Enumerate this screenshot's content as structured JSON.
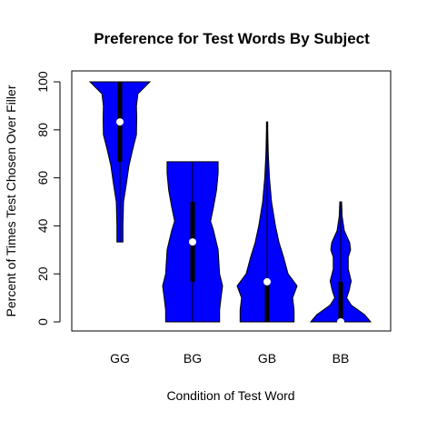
{
  "chart_data": {
    "type": "violin",
    "title": "Preference for Test Words By Subject",
    "xlabel": "Condition of Test Word",
    "ylabel": "Percent of Times Test Chosen Over Filler",
    "categories": [
      "GG",
      "BG",
      "GB",
      "BB"
    ],
    "ylim": [
      -4,
      104
    ],
    "yticks": [
      0,
      20,
      40,
      60,
      80,
      100
    ],
    "grid": false,
    "fill_color": "#0000ff",
    "violins": [
      {
        "category": "GG",
        "min": 33.3,
        "max": 100,
        "q1": 66.7,
        "median": 83.3,
        "q3": 100,
        "profile": [
          [
            33.3,
            0.1
          ],
          [
            40,
            0.1
          ],
          [
            50,
            0.12
          ],
          [
            58,
            0.22
          ],
          [
            65,
            0.3
          ],
          [
            72,
            0.43
          ],
          [
            78,
            0.55
          ],
          [
            85,
            0.56
          ],
          [
            90,
            0.55
          ],
          [
            95,
            0.6
          ],
          [
            100,
            1.0
          ]
        ]
      },
      {
        "category": "BG",
        "min": 0,
        "max": 66.7,
        "q1": 16.7,
        "median": 33.3,
        "q3": 50,
        "profile": [
          [
            0,
            0.9
          ],
          [
            5,
            0.9
          ],
          [
            10,
            0.95
          ],
          [
            15,
            1.0
          ],
          [
            20,
            0.9
          ],
          [
            30,
            0.85
          ],
          [
            38,
            0.7
          ],
          [
            42,
            0.6
          ],
          [
            48,
            0.7
          ],
          [
            55,
            0.8
          ],
          [
            62,
            0.85
          ],
          [
            66.7,
            0.85
          ]
        ]
      },
      {
        "category": "GB",
        "min": 0,
        "max": 83.3,
        "q1": 0,
        "median": 16.7,
        "q3": 16.7,
        "profile": [
          [
            0,
            0.9
          ],
          [
            5,
            0.9
          ],
          [
            10,
            0.85
          ],
          [
            15,
            1.0
          ],
          [
            20,
            0.7
          ],
          [
            27,
            0.55
          ],
          [
            33,
            0.4
          ],
          [
            40,
            0.28
          ],
          [
            50,
            0.15
          ],
          [
            60,
            0.08
          ],
          [
            70,
            0.04
          ],
          [
            80,
            0.02
          ],
          [
            83.3,
            0.02
          ]
        ]
      },
      {
        "category": "BB",
        "min": 0,
        "max": 50,
        "q1": 0,
        "median": 0,
        "q3": 16.7,
        "profile": [
          [
            0,
            1.0
          ],
          [
            3,
            0.8
          ],
          [
            7,
            0.35
          ],
          [
            10,
            0.2
          ],
          [
            13,
            0.28
          ],
          [
            17,
            0.35
          ],
          [
            22,
            0.25
          ],
          [
            27,
            0.25
          ],
          [
            30,
            0.33
          ],
          [
            33,
            0.3
          ],
          [
            38,
            0.12
          ],
          [
            44,
            0.05
          ],
          [
            50,
            0.03
          ]
        ]
      }
    ]
  }
}
